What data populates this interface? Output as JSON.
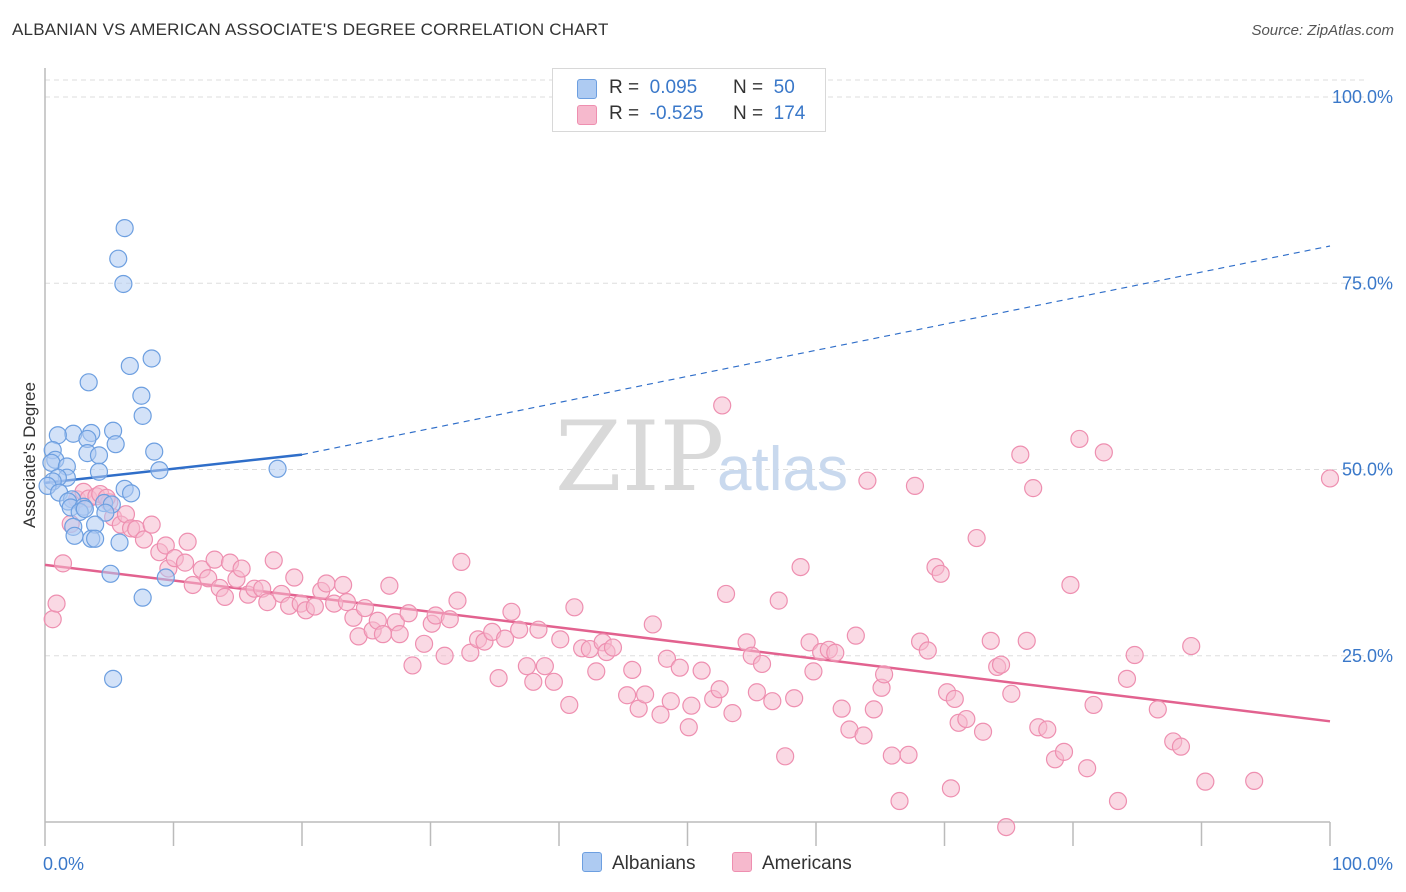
{
  "title": "ALBANIAN VS AMERICAN ASSOCIATE'S DEGREE CORRELATION CHART",
  "source": "Source: ZipAtlas.com",
  "watermark": {
    "zip": "ZIP",
    "atlas": "atlas"
  },
  "legend": {
    "rows": [
      {
        "r_label": "R =",
        "r_value": "0.095",
        "n_label": "N =",
        "n_value": "50"
      },
      {
        "r_label": "R =",
        "r_value": "-0.525",
        "n_label": "N =",
        "n_value": "174"
      }
    ]
  },
  "colors": {
    "albanians_fill": "#aecbf2",
    "albanians_stroke": "#6d9fe0",
    "albanians_line": "#2f6ec9",
    "americans_fill": "#f6b9cd",
    "americans_stroke": "#ee8fb0",
    "americans_line": "#e2628f",
    "tick_label": "#3a78c9",
    "grid": "#dddddd"
  },
  "chart_data": {
    "type": "scatter",
    "title": "ALBANIAN VS AMERICAN ASSOCIATE'S DEGREE CORRELATION CHART",
    "xlabel": "",
    "ylabel": "Associate's Degree",
    "xlim": [
      0,
      100
    ],
    "ylim": [
      0,
      105
    ],
    "x_tick_labels": [
      "0.0%",
      "100.0%"
    ],
    "y_ticks": [
      25,
      50,
      75,
      100
    ],
    "y_tick_labels": [
      "25.0%",
      "50.0%",
      "75.0%",
      "100.0%"
    ],
    "grid": true,
    "legend_position": "top-center",
    "series": [
      {
        "name": "Albanians",
        "R": 0.095,
        "N": 50,
        "trend": {
          "solid": [
            [
              0,
              48.2
            ],
            [
              20,
              52.0
            ]
          ],
          "dashed": [
            [
              20,
              52.0
            ],
            [
              100,
              80.0
            ]
          ]
        },
        "points": [
          [
            6.2,
            82.4
          ],
          [
            5.7,
            78.3
          ],
          [
            6.1,
            74.9
          ],
          [
            8.3,
            64.9
          ],
          [
            6.6,
            63.9
          ],
          [
            3.4,
            61.7
          ],
          [
            7.5,
            59.9
          ],
          [
            7.6,
            57.2
          ],
          [
            5.3,
            55.2
          ],
          [
            3.6,
            54.9
          ],
          [
            2.2,
            54.8
          ],
          [
            1.0,
            54.6
          ],
          [
            3.3,
            54.1
          ],
          [
            5.5,
            53.4
          ],
          [
            0.6,
            52.6
          ],
          [
            8.5,
            52.4
          ],
          [
            3.3,
            52.2
          ],
          [
            4.2,
            51.9
          ],
          [
            0.8,
            51.3
          ],
          [
            0.5,
            50.9
          ],
          [
            1.7,
            50.4
          ],
          [
            8.9,
            49.9
          ],
          [
            18.1,
            50.1
          ],
          [
            4.2,
            49.7
          ],
          [
            1.7,
            48.9
          ],
          [
            1.0,
            48.9
          ],
          [
            0.6,
            48.4
          ],
          [
            0.2,
            47.8
          ],
          [
            6.2,
            47.4
          ],
          [
            6.7,
            46.8
          ],
          [
            1.1,
            46.9
          ],
          [
            2.1,
            46.0
          ],
          [
            1.8,
            45.7
          ],
          [
            4.6,
            45.5
          ],
          [
            5.2,
            45.3
          ],
          [
            2.0,
            44.9
          ],
          [
            3.0,
            45.0
          ],
          [
            2.7,
            44.3
          ],
          [
            3.1,
            44.7
          ],
          [
            4.7,
            44.2
          ],
          [
            3.9,
            42.6
          ],
          [
            2.2,
            42.3
          ],
          [
            2.3,
            41.1
          ],
          [
            3.6,
            40.7
          ],
          [
            3.9,
            40.7
          ],
          [
            5.8,
            40.2
          ],
          [
            5.1,
            36.0
          ],
          [
            9.4,
            35.5
          ],
          [
            7.6,
            32.8
          ],
          [
            5.3,
            21.9
          ]
        ]
      },
      {
        "name": "Americans",
        "R": -0.525,
        "N": 174,
        "trend": {
          "solid": [
            [
              0,
              37.2
            ],
            [
              100,
              16.2
            ]
          ]
        },
        "points": [
          [
            0.6,
            29.9
          ],
          [
            0.9,
            32.0
          ],
          [
            1.4,
            37.4
          ],
          [
            2.0,
            42.7
          ],
          [
            2.5,
            46.0
          ],
          [
            3.0,
            47.0
          ],
          [
            3.4,
            46.1
          ],
          [
            4.0,
            46.4
          ],
          [
            4.3,
            46.7
          ],
          [
            5.0,
            45.6
          ],
          [
            4.8,
            46.2
          ],
          [
            5.3,
            43.6
          ],
          [
            5.9,
            42.6
          ],
          [
            6.3,
            44.0
          ],
          [
            6.7,
            42.1
          ],
          [
            7.1,
            42.0
          ],
          [
            7.7,
            40.6
          ],
          [
            8.3,
            42.6
          ],
          [
            8.9,
            38.9
          ],
          [
            9.4,
            39.8
          ],
          [
            9.6,
            36.7
          ],
          [
            10.1,
            38.1
          ],
          [
            10.9,
            37.5
          ],
          [
            11.1,
            40.3
          ],
          [
            11.5,
            34.5
          ],
          [
            12.2,
            36.6
          ],
          [
            12.7,
            35.4
          ],
          [
            13.2,
            37.9
          ],
          [
            13.6,
            34.1
          ],
          [
            14.0,
            32.9
          ],
          [
            14.4,
            37.5
          ],
          [
            14.9,
            35.3
          ],
          [
            15.3,
            36.7
          ],
          [
            15.8,
            33.2
          ],
          [
            16.3,
            34.0
          ],
          [
            16.9,
            34.0
          ],
          [
            17.3,
            32.2
          ],
          [
            17.8,
            37.8
          ],
          [
            18.4,
            33.3
          ],
          [
            19.0,
            31.7
          ],
          [
            19.4,
            35.5
          ],
          [
            19.9,
            32.0
          ],
          [
            20.3,
            31.1
          ],
          [
            21.0,
            31.6
          ],
          [
            21.5,
            33.7
          ],
          [
            21.9,
            34.7
          ],
          [
            22.5,
            32.0
          ],
          [
            23.2,
            34.5
          ],
          [
            23.5,
            32.2
          ],
          [
            24.0,
            30.1
          ],
          [
            24.4,
            27.6
          ],
          [
            24.9,
            31.4
          ],
          [
            25.5,
            28.4
          ],
          [
            25.9,
            29.7
          ],
          [
            26.3,
            27.9
          ],
          [
            26.8,
            34.4
          ],
          [
            27.3,
            29.5
          ],
          [
            27.6,
            27.9
          ],
          [
            28.3,
            30.7
          ],
          [
            28.6,
            23.7
          ],
          [
            29.5,
            26.6
          ],
          [
            30.1,
            29.3
          ],
          [
            30.4,
            30.4
          ],
          [
            31.1,
            25.0
          ],
          [
            31.5,
            29.9
          ],
          [
            32.1,
            32.4
          ],
          [
            32.4,
            37.6
          ],
          [
            33.1,
            25.4
          ],
          [
            33.7,
            27.2
          ],
          [
            34.2,
            26.9
          ],
          [
            34.8,
            28.2
          ],
          [
            35.3,
            22.0
          ],
          [
            35.8,
            27.3
          ],
          [
            36.3,
            30.9
          ],
          [
            36.9,
            28.5
          ],
          [
            37.5,
            23.6
          ],
          [
            38.0,
            21.5
          ],
          [
            38.4,
            28.5
          ],
          [
            38.9,
            23.6
          ],
          [
            39.6,
            21.5
          ],
          [
            40.1,
            27.2
          ],
          [
            40.8,
            18.4
          ],
          [
            41.2,
            31.5
          ],
          [
            41.8,
            26.0
          ],
          [
            42.4,
            25.9
          ],
          [
            42.9,
            22.9
          ],
          [
            43.4,
            26.8
          ],
          [
            43.7,
            25.5
          ],
          [
            44.2,
            26.1
          ],
          [
            45.3,
            19.7
          ],
          [
            45.7,
            23.1
          ],
          [
            46.2,
            17.9
          ],
          [
            46.7,
            19.8
          ],
          [
            47.3,
            29.2
          ],
          [
            47.9,
            17.1
          ],
          [
            48.4,
            24.6
          ],
          [
            48.7,
            18.9
          ],
          [
            49.4,
            23.4
          ],
          [
            50.1,
            15.4
          ],
          [
            50.3,
            18.3
          ],
          [
            51.1,
            23.0
          ],
          [
            52.0,
            19.2
          ],
          [
            52.5,
            20.5
          ],
          [
            52.7,
            58.6
          ],
          [
            53.0,
            33.3
          ],
          [
            53.5,
            17.3
          ],
          [
            54.6,
            26.8
          ],
          [
            55.0,
            25.0
          ],
          [
            55.4,
            20.1
          ],
          [
            55.8,
            23.9
          ],
          [
            56.6,
            18.9
          ],
          [
            57.1,
            32.4
          ],
          [
            57.6,
            11.5
          ],
          [
            58.3,
            19.3
          ],
          [
            58.8,
            36.9
          ],
          [
            59.5,
            26.8
          ],
          [
            59.8,
            22.9
          ],
          [
            60.4,
            25.5
          ],
          [
            61.0,
            25.8
          ],
          [
            61.5,
            25.4
          ],
          [
            62.0,
            17.9
          ],
          [
            62.6,
            15.1
          ],
          [
            63.1,
            27.7
          ],
          [
            63.7,
            14.3
          ],
          [
            64.0,
            48.5
          ],
          [
            64.5,
            17.8
          ],
          [
            65.1,
            20.7
          ],
          [
            65.3,
            22.5
          ],
          [
            65.9,
            11.6
          ],
          [
            66.5,
            5.5
          ],
          [
            67.2,
            11.7
          ],
          [
            67.7,
            47.8
          ],
          [
            68.1,
            26.9
          ],
          [
            68.7,
            25.7
          ],
          [
            69.3,
            36.9
          ],
          [
            69.7,
            36.0
          ],
          [
            70.2,
            20.1
          ],
          [
            70.5,
            7.2
          ],
          [
            70.8,
            19.2
          ],
          [
            71.1,
            16.0
          ],
          [
            71.7,
            16.5
          ],
          [
            72.5,
            40.8
          ],
          [
            73.0,
            14.8
          ],
          [
            73.6,
            27.0
          ],
          [
            74.1,
            23.5
          ],
          [
            74.4,
            23.8
          ],
          [
            74.8,
            2.0
          ],
          [
            75.2,
            19.9
          ],
          [
            75.9,
            52.0
          ],
          [
            76.4,
            27.0
          ],
          [
            76.9,
            47.5
          ],
          [
            77.3,
            15.4
          ],
          [
            78.0,
            15.1
          ],
          [
            78.6,
            11.1
          ],
          [
            79.3,
            12.1
          ],
          [
            79.8,
            34.5
          ],
          [
            80.5,
            54.1
          ],
          [
            81.1,
            9.9
          ],
          [
            81.6,
            18.4
          ],
          [
            82.4,
            52.3
          ],
          [
            83.5,
            5.5
          ],
          [
            84.2,
            21.9
          ],
          [
            84.8,
            25.1
          ],
          [
            86.6,
            17.8
          ],
          [
            87.8,
            13.5
          ],
          [
            88.4,
            12.8
          ],
          [
            89.2,
            26.3
          ],
          [
            90.3,
            8.1
          ],
          [
            94.1,
            8.2
          ],
          [
            100.0,
            48.8
          ]
        ]
      }
    ]
  }
}
